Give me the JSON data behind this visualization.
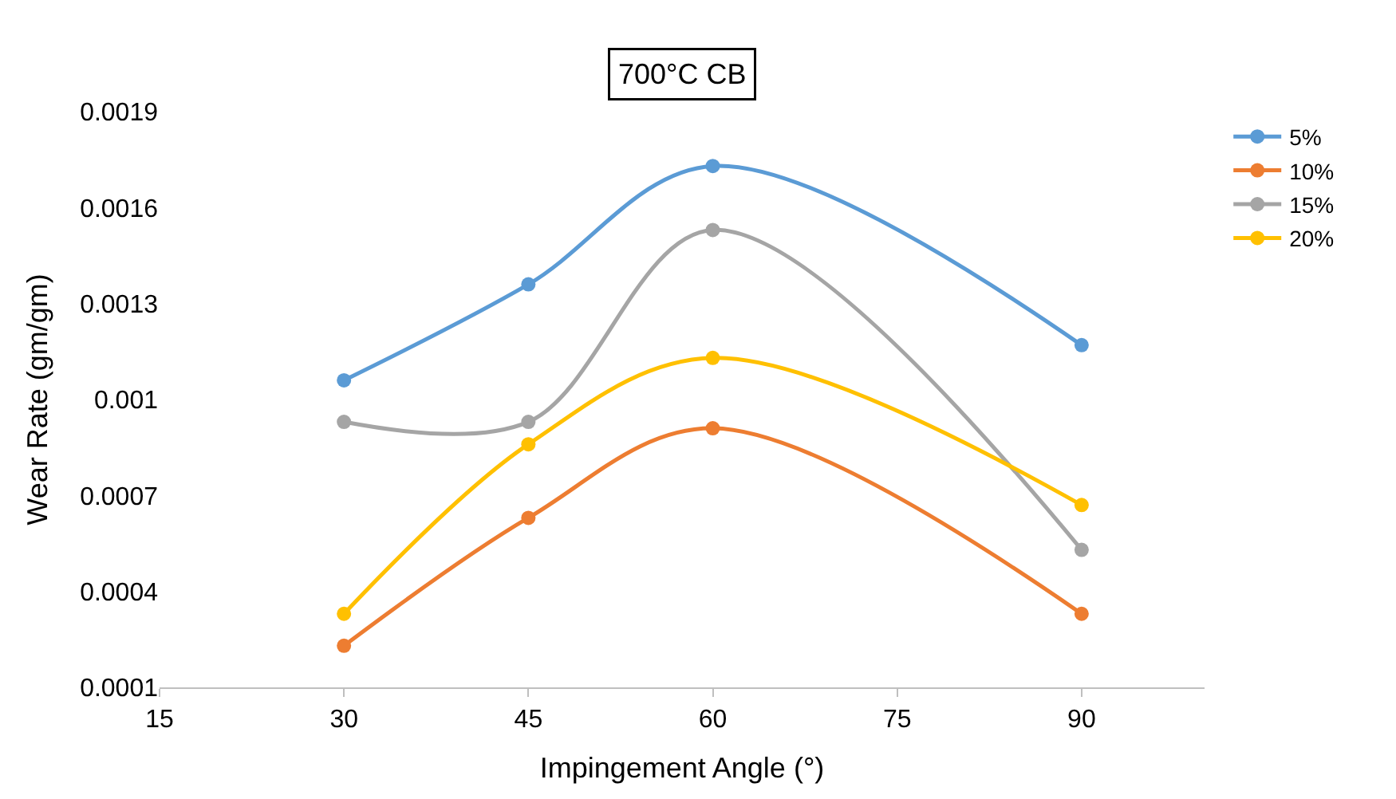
{
  "chart_data": {
    "type": "line",
    "title": "700°C CB",
    "xlabel": "Impingement Angle (°)",
    "ylabel": "Wear Rate (gm/gm)",
    "x": [
      30,
      45,
      60,
      90
    ],
    "series": [
      {
        "name": "5%",
        "color": "#5b9bd5",
        "values": [
          0.00106,
          0.00136,
          0.00173,
          0.00117
        ]
      },
      {
        "name": "10%",
        "color": "#ed7d31",
        "values": [
          0.00023,
          0.00063,
          0.00091,
          0.00033
        ]
      },
      {
        "name": "15%",
        "color": "#a5a5a5",
        "values": [
          0.00093,
          0.00093,
          0.00153,
          0.00053
        ]
      },
      {
        "name": "20%",
        "color": "#ffc000",
        "values": [
          0.00033,
          0.00086,
          0.00113,
          0.00067
        ]
      }
    ],
    "xlim": [
      15,
      100
    ],
    "xticks": [
      15,
      30,
      45,
      60,
      75,
      90
    ],
    "ylim": [
      0.0001,
      0.0019
    ],
    "yticks": [
      0.0001,
      0.0004,
      0.0007,
      0.001,
      0.0013,
      0.0016,
      0.0019
    ],
    "legend": "top right",
    "marker": "circle",
    "line_style": "solid"
  }
}
